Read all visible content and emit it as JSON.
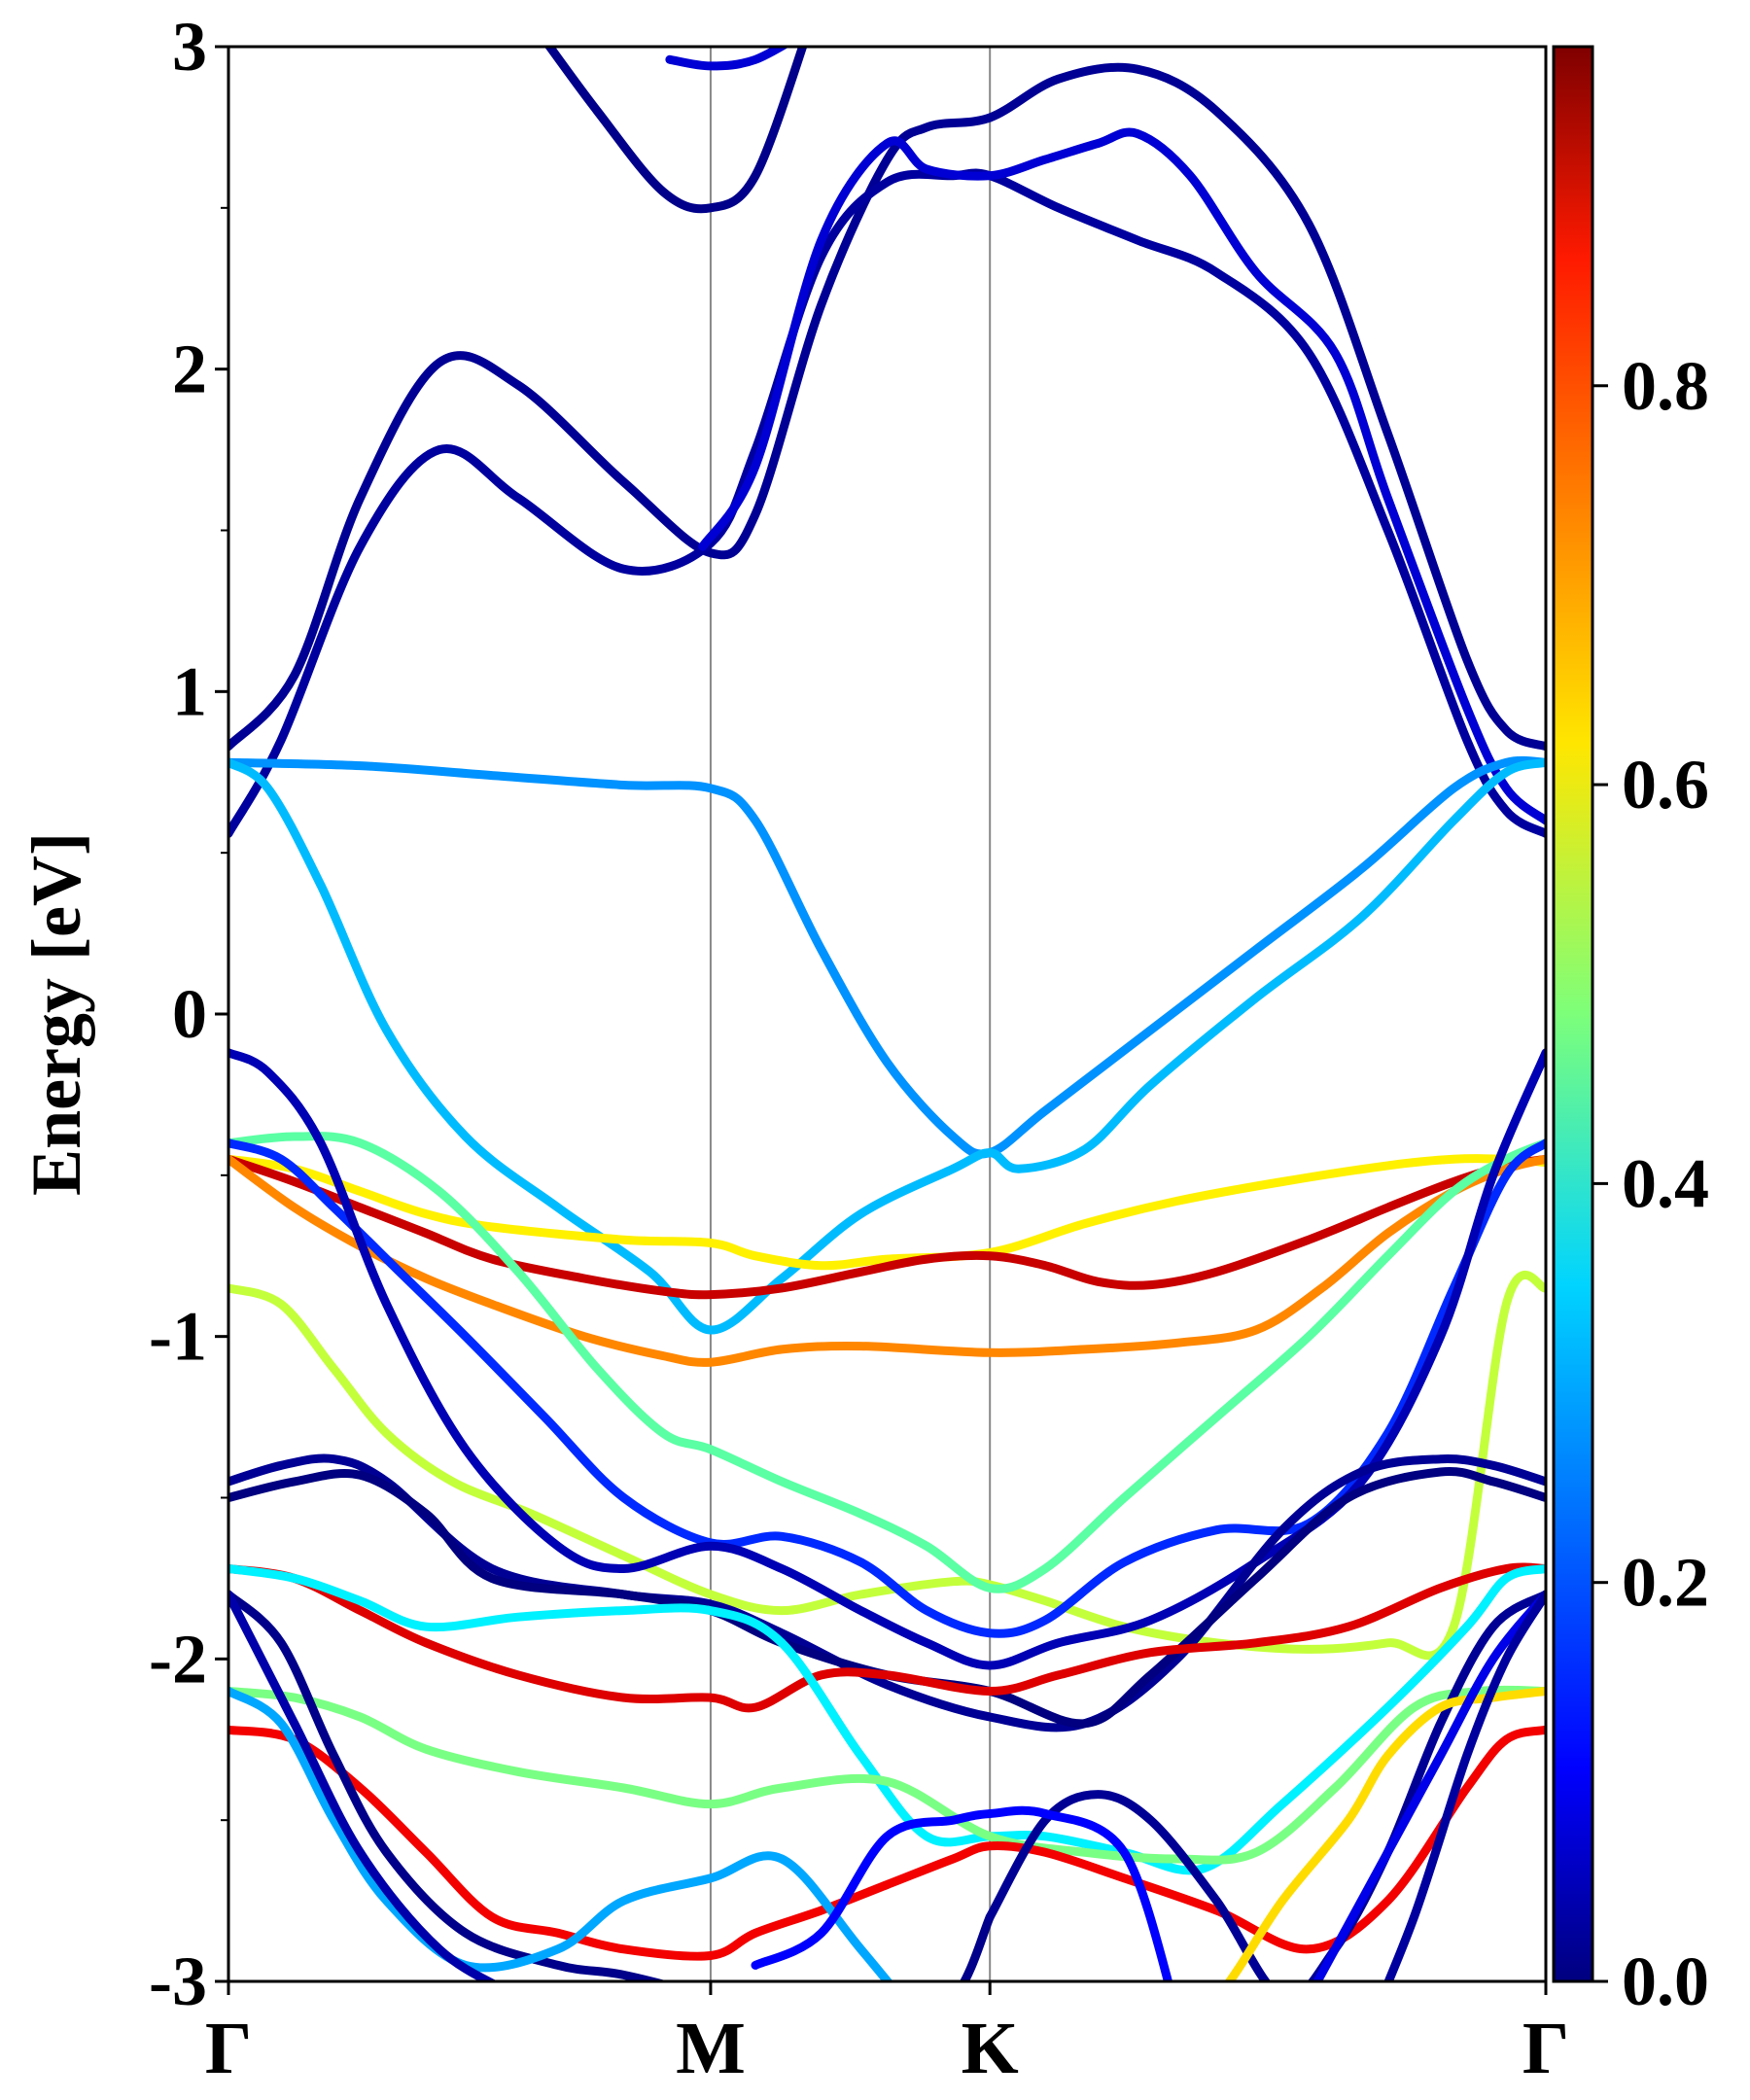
{
  "chart_data": {
    "type": "line",
    "title": "",
    "xlabel": "",
    "ylabel": "Energy [eV]",
    "ylim": [
      -3,
      3
    ],
    "xlim": [
      0,
      1
    ],
    "grid": false,
    "legend": "none",
    "kpoints": [
      {
        "label": "Γ",
        "x": 0.0
      },
      {
        "label": "M",
        "x": 0.366
      },
      {
        "label": "K",
        "x": 0.578
      },
      {
        "label": "Γ",
        "x": 1.0
      }
    ],
    "yticks": [
      {
        "value": 3,
        "label": "3"
      },
      {
        "value": 2,
        "label": "2"
      },
      {
        "value": 1,
        "label": "1"
      },
      {
        "value": 0,
        "label": "0"
      },
      {
        "value": -1,
        "label": "-1"
      },
      {
        "value": -2,
        "label": "-2"
      },
      {
        "value": -3,
        "label": "-3"
      }
    ],
    "colorbar": {
      "colormap": "jet",
      "range": [
        0.0,
        0.97
      ],
      "ticks": [
        {
          "value": 0.0,
          "label": "0.0"
        },
        {
          "value": 0.2,
          "label": "0.2"
        },
        {
          "value": 0.4,
          "label": "0.4"
        },
        {
          "value": 0.6,
          "label": "0.6"
        },
        {
          "value": 0.8,
          "label": "0.8"
        }
      ]
    },
    "series": [
      {
        "x": [
          0,
          0.05,
          0.1,
          0.16,
          0.22,
          0.3,
          0.366,
          0.4,
          0.45,
          0.5,
          0.53,
          0.578,
          0.63,
          0.69,
          0.75,
          0.82,
          0.88,
          0.94,
          0.97,
          1.0
        ],
        "y": [
          0.83,
          1.05,
          1.6,
          2.02,
          1.95,
          1.65,
          1.43,
          1.55,
          2.2,
          2.65,
          2.75,
          2.78,
          2.9,
          2.93,
          2.8,
          2.45,
          1.8,
          1.1,
          0.88,
          0.83
        ],
        "c": 0.02
      },
      {
        "x": [
          0,
          0.04,
          0.1,
          0.16,
          0.22,
          0.3,
          0.366,
          0.4,
          0.45,
          0.5,
          0.55,
          0.578,
          0.63,
          0.69,
          0.75,
          0.82,
          0.88,
          0.94,
          0.97,
          1.0
        ],
        "y": [
          0.56,
          0.85,
          1.45,
          1.75,
          1.6,
          1.38,
          1.46,
          1.75,
          2.35,
          2.58,
          2.6,
          2.6,
          2.5,
          2.4,
          2.3,
          2.05,
          1.5,
          0.85,
          0.63,
          0.56
        ],
        "c": 0.03
      },
      {
        "x": [
          0.36,
          0.4,
          0.45,
          0.5,
          0.53,
          0.578,
          0.62,
          0.66,
          0.69,
          0.73,
          0.78,
          0.84,
          0.88,
          0.94,
          0.97,
          1.0
        ],
        "y": [
          1.45,
          1.7,
          2.4,
          2.7,
          2.62,
          2.6,
          2.65,
          2.7,
          2.73,
          2.6,
          2.3,
          2.05,
          1.6,
          0.95,
          0.7,
          0.6
        ],
        "c": 0.08
      },
      {
        "x": [
          0.235,
          0.28,
          0.33,
          0.366,
          0.4,
          0.44
        ],
        "y": [
          3.05,
          2.8,
          2.55,
          2.5,
          2.6,
          3.05
        ],
        "c": 0.01
      },
      {
        "x": [
          0.335,
          0.366,
          0.4,
          0.44
        ],
        "y": [
          2.96,
          2.94,
          2.96,
          3.05
        ],
        "c": 0.08
      },
      {
        "x": [
          0,
          0.1,
          0.2,
          0.3,
          0.366,
          0.4,
          0.45,
          0.5,
          0.55,
          0.578,
          0.62,
          0.7,
          0.78,
          0.86,
          0.93,
          0.97,
          1.0
        ],
        "y": [
          0.78,
          0.77,
          0.74,
          0.71,
          0.7,
          0.6,
          0.2,
          -0.15,
          -0.38,
          -0.43,
          -0.3,
          -0.05,
          0.2,
          0.45,
          0.7,
          0.78,
          0.78
        ],
        "c": 0.26
      },
      {
        "x": [
          0,
          0.03,
          0.07,
          0.12,
          0.18,
          0.25,
          0.32,
          0.366,
          0.42,
          0.48,
          0.55,
          0.578,
          0.6,
          0.65,
          0.7,
          0.78,
          0.86,
          0.93,
          0.97,
          1.0
        ],
        "y": [
          0.78,
          0.7,
          0.4,
          -0.05,
          -0.38,
          -0.6,
          -0.8,
          -0.98,
          -0.82,
          -0.62,
          -0.48,
          -0.43,
          -0.48,
          -0.42,
          -0.22,
          0.05,
          0.3,
          0.6,
          0.75,
          0.78
        ],
        "c": 0.3
      },
      {
        "x": [
          0,
          0.05,
          0.1,
          0.15,
          0.2,
          0.3,
          0.366,
          0.4,
          0.45,
          0.5,
          0.578,
          0.65,
          0.72,
          0.8,
          0.88,
          0.93,
          0.97,
          1.0
        ],
        "y": [
          -0.45,
          -0.48,
          -0.55,
          -0.62,
          -0.66,
          -0.7,
          -0.71,
          -0.75,
          -0.78,
          -0.76,
          -0.74,
          -0.65,
          -0.58,
          -0.52,
          -0.47,
          -0.45,
          -0.45,
          -0.46
        ],
        "c": 0.62
      },
      {
        "x": [
          0,
          0.05,
          0.1,
          0.15,
          0.2,
          0.27,
          0.33,
          0.366,
          0.42,
          0.48,
          0.53,
          0.578,
          0.62,
          0.66,
          0.7,
          0.75,
          0.82,
          0.88,
          0.93,
          0.97,
          1.0
        ],
        "y": [
          -0.45,
          -0.52,
          -0.6,
          -0.68,
          -0.76,
          -0.82,
          -0.86,
          -0.87,
          -0.85,
          -0.8,
          -0.76,
          -0.75,
          -0.78,
          -0.83,
          -0.84,
          -0.8,
          -0.7,
          -0.6,
          -0.52,
          -0.47,
          -0.45
        ],
        "c": 0.9
      },
      {
        "x": [
          0,
          0.05,
          0.1,
          0.15,
          0.2,
          0.27,
          0.33,
          0.366,
          0.42,
          0.48,
          0.578,
          0.65,
          0.72,
          0.78,
          0.83,
          0.88,
          0.93,
          0.97,
          1.0
        ],
        "y": [
          -0.45,
          -0.6,
          -0.72,
          -0.82,
          -0.9,
          -1.0,
          -1.06,
          -1.08,
          -1.04,
          -1.03,
          -1.05,
          -1.04,
          -1.02,
          -0.98,
          -0.85,
          -0.68,
          -0.55,
          -0.48,
          -0.45
        ],
        "c": 0.72
      },
      {
        "x": [
          0,
          0.04,
          0.08,
          0.12,
          0.17,
          0.23,
          0.3,
          0.366,
          0.42,
          0.48,
          0.55,
          0.578,
          0.62,
          0.68,
          0.75,
          0.82,
          0.88,
          0.93,
          0.97,
          1.0
        ],
        "y": [
          -0.85,
          -0.9,
          -1.1,
          -1.3,
          -1.45,
          -1.55,
          -1.68,
          -1.8,
          -1.85,
          -1.8,
          -1.76,
          -1.77,
          -1.82,
          -1.9,
          -1.95,
          -1.97,
          -1.95,
          -1.9,
          -0.9,
          -0.85
        ],
        "c": 0.55
      },
      {
        "x": [
          0,
          0.05,
          0.1,
          0.16,
          0.22,
          0.28,
          0.33,
          0.366,
          0.42,
          0.48,
          0.53,
          0.578,
          0.62,
          0.68,
          0.75,
          0.82,
          0.88,
          0.93,
          0.97,
          1.0
        ],
        "y": [
          -0.4,
          -0.38,
          -0.4,
          -0.55,
          -0.8,
          -1.1,
          -1.3,
          -1.35,
          -1.45,
          -1.55,
          -1.65,
          -1.78,
          -1.72,
          -1.5,
          -1.25,
          -1.0,
          -0.75,
          -0.55,
          -0.45,
          -0.4
        ],
        "c": 0.45
      },
      {
        "x": [
          0,
          0.04,
          0.08,
          0.13,
          0.18,
          0.24,
          0.3,
          0.366,
          0.42,
          0.48,
          0.53,
          0.578,
          0.62,
          0.68,
          0.75,
          0.82,
          0.88,
          0.93,
          0.97,
          1.0
        ],
        "y": [
          -0.4,
          -0.45,
          -0.6,
          -0.8,
          -1.0,
          -1.25,
          -1.5,
          -1.64,
          -1.62,
          -1.7,
          -1.85,
          -1.92,
          -1.88,
          -1.7,
          -1.6,
          -1.58,
          -1.3,
          -0.85,
          -0.5,
          -0.4
        ],
        "c": 0.16
      },
      {
        "x": [
          0,
          0.03,
          0.07,
          0.12,
          0.18,
          0.25,
          0.3,
          0.366,
          0.42,
          0.48,
          0.53,
          0.578,
          0.63,
          0.7,
          0.78,
          0.86,
          0.92,
          0.96,
          1.0
        ],
        "y": [
          -0.12,
          -0.18,
          -0.4,
          -0.9,
          -1.35,
          -1.65,
          -1.72,
          -1.65,
          -1.72,
          -1.85,
          -1.95,
          -2.02,
          -1.95,
          -1.88,
          -1.7,
          -1.45,
          -1.0,
          -0.5,
          -0.12
        ],
        "c": 0.05
      },
      {
        "x": [
          0,
          0.04,
          0.08,
          0.12,
          0.2,
          0.3,
          0.366,
          0.42,
          0.5,
          0.578,
          0.65,
          0.72,
          0.8,
          0.86,
          0.92,
          0.96,
          1.0
        ],
        "y": [
          -1.45,
          -1.4,
          -1.38,
          -1.45,
          -1.72,
          -1.8,
          -1.83,
          -1.92,
          -2.08,
          -2.18,
          -2.2,
          -2.0,
          -1.6,
          -1.42,
          -1.38,
          -1.4,
          -1.45
        ],
        "c": 0.02
      },
      {
        "x": [
          0,
          0.05,
          0.1,
          0.15,
          0.2,
          0.3,
          0.366,
          0.42,
          0.5,
          0.578,
          0.65,
          0.7,
          0.78,
          0.85,
          0.92,
          0.96,
          1.0
        ],
        "y": [
          -1.5,
          -1.45,
          -1.43,
          -1.55,
          -1.75,
          -1.8,
          -1.85,
          -1.95,
          -2.05,
          -2.1,
          -2.2,
          -2.05,
          -1.75,
          -1.5,
          -1.42,
          -1.45,
          -1.5
        ],
        "c": 0.0
      },
      {
        "x": [
          0,
          0.05,
          0.1,
          0.15,
          0.22,
          0.3,
          0.366,
          0.4,
          0.45,
          0.5,
          0.578,
          0.63,
          0.7,
          0.78,
          0.85,
          0.92,
          0.97,
          1.0
        ],
        "y": [
          -1.72,
          -1.75,
          -1.85,
          -1.95,
          -2.05,
          -2.12,
          -2.12,
          -2.15,
          -2.05,
          -2.05,
          -2.1,
          -2.05,
          -1.98,
          -1.95,
          -1.9,
          -1.78,
          -1.72,
          -1.72
        ],
        "c": 0.88
      },
      {
        "x": [
          0,
          0.05,
          0.1,
          0.15,
          0.22,
          0.3,
          0.366,
          0.42,
          0.48,
          0.53,
          0.578,
          0.62,
          0.68,
          0.74,
          0.8,
          0.88,
          0.94,
          0.97,
          1.0
        ],
        "y": [
          -1.72,
          -1.75,
          -1.82,
          -1.9,
          -1.87,
          -1.85,
          -1.85,
          -1.95,
          -2.3,
          -2.55,
          -2.55,
          -2.55,
          -2.6,
          -2.65,
          -2.45,
          -2.15,
          -1.9,
          -1.75,
          -1.72
        ],
        "c": 0.35
      },
      {
        "x": [
          0,
          0.05,
          0.1,
          0.15,
          0.22,
          0.3,
          0.366,
          0.42,
          0.5,
          0.578,
          0.65,
          0.72,
          0.78,
          0.84,
          0.9,
          0.95,
          1.0
        ],
        "y": [
          -2.1,
          -2.12,
          -2.18,
          -2.28,
          -2.35,
          -2.4,
          -2.45,
          -2.4,
          -2.38,
          -2.55,
          -2.6,
          -2.62,
          -2.6,
          -2.4,
          -2.15,
          -2.1,
          -2.1
        ],
        "c": 0.48
      },
      {
        "x": [
          0,
          0.05,
          0.1,
          0.15,
          0.2,
          0.25,
          0.3,
          0.366,
          0.4,
          0.45,
          0.5,
          0.55,
          0.578,
          0.62,
          0.68,
          0.75,
          0.82,
          0.88,
          0.94,
          0.97,
          1.0
        ],
        "y": [
          -2.22,
          -2.25,
          -2.4,
          -2.6,
          -2.8,
          -2.85,
          -2.9,
          -2.92,
          -2.85,
          -2.78,
          -2.7,
          -2.62,
          -2.58,
          -2.6,
          -2.68,
          -2.78,
          -2.9,
          -2.75,
          -2.4,
          -2.25,
          -2.22
        ],
        "c": 0.86
      },
      {
        "x": [
          0,
          0.04,
          0.08,
          0.12,
          0.18,
          0.25,
          0.3,
          0.366,
          0.4,
          0.45,
          0.5,
          0.55,
          0.578
        ],
        "y": [
          -1.8,
          -1.95,
          -2.3,
          -2.6,
          -2.85,
          -2.95,
          -2.98,
          -3.05,
          -3.1,
          -3.1,
          -3.1,
          -3.05,
          -2.8
        ],
        "c": 0.01
      },
      {
        "x": [
          0.578,
          0.62,
          0.66,
          0.7,
          0.75,
          0.8,
          0.84,
          0.88,
          0.92,
          0.96,
          1.0
        ],
        "y": [
          -2.8,
          -2.5,
          -2.42,
          -2.5,
          -2.75,
          -3.05,
          -2.9,
          -2.6,
          -2.2,
          -1.9,
          -1.8
        ],
        "c": 0.02
      },
      {
        "x": [
          0,
          0.04,
          0.08,
          0.12,
          0.18,
          0.25,
          0.3,
          0.366,
          0.42,
          0.48,
          0.54
        ],
        "y": [
          -2.1,
          -2.2,
          -2.5,
          -2.75,
          -2.95,
          -2.9,
          -2.75,
          -2.68,
          -2.62,
          -2.9,
          -3.2
        ],
        "c": 0.28
      },
      {
        "x": [
          0.4,
          0.45,
          0.5,
          0.55,
          0.578,
          0.62,
          0.68,
          0.72
        ],
        "y": [
          -2.95,
          -2.85,
          -2.55,
          -2.5,
          -2.48,
          -2.48,
          -2.6,
          -3.1
        ],
        "c": 0.12
      },
      {
        "x": [
          0.72,
          0.76,
          0.8,
          0.85,
          0.88,
          0.92,
          0.96,
          1.0
        ],
        "y": [
          -3.2,
          -3.0,
          -2.75,
          -2.5,
          -2.3,
          -2.15,
          -2.12,
          -2.1
        ],
        "c": 0.64
      },
      {
        "x": [
          0.8,
          0.84,
          0.88,
          0.92,
          0.96,
          1.0
        ],
        "y": [
          -3.2,
          -2.9,
          -2.6,
          -2.3,
          -2.0,
          -1.8
        ],
        "c": 0.1
      },
      {
        "x": [
          0.86,
          0.9,
          0.94,
          0.97,
          1.0
        ],
        "y": [
          -3.2,
          -2.8,
          -2.3,
          -2.0,
          -1.8
        ],
        "c": 0.03
      },
      {
        "x": [
          0,
          0.05,
          0.1,
          0.16,
          0.22,
          0.28
        ],
        "y": [
          -1.8,
          -2.2,
          -2.6,
          -2.9,
          -3.05,
          -3.2
        ],
        "c": 0.04
      }
    ]
  }
}
